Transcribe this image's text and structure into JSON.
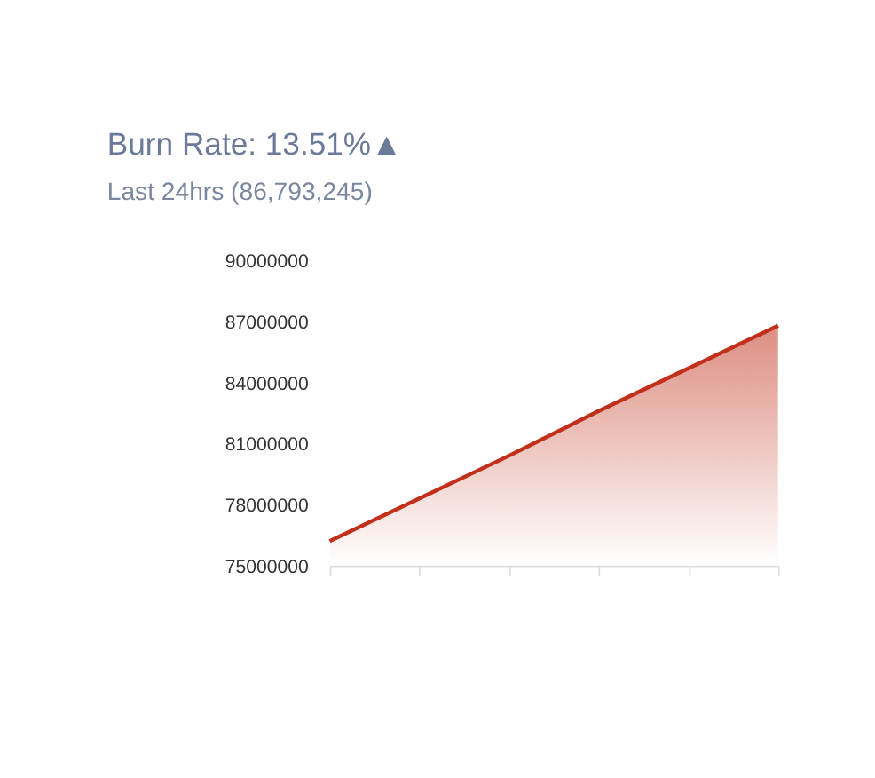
{
  "chart_data": {
    "type": "area",
    "title": "Burn Rate: 13.51%▲",
    "subtitle": "Last 24hrs (86,793,245)",
    "categories": [
      null,
      null,
      null,
      null,
      null,
      null
    ],
    "series": [
      {
        "color": "#c0301a",
        "values": [
          76200000,
          78300000,
          80400000,
          82600000,
          84700000,
          86800000
        ]
      }
    ],
    "ylim": [
      75000000,
      90000000
    ],
    "yticks": [
      75000000,
      78000000,
      81000000,
      84000000,
      87000000,
      90000000
    ],
    "grid": false,
    "tick_labels": "y"
  }
}
